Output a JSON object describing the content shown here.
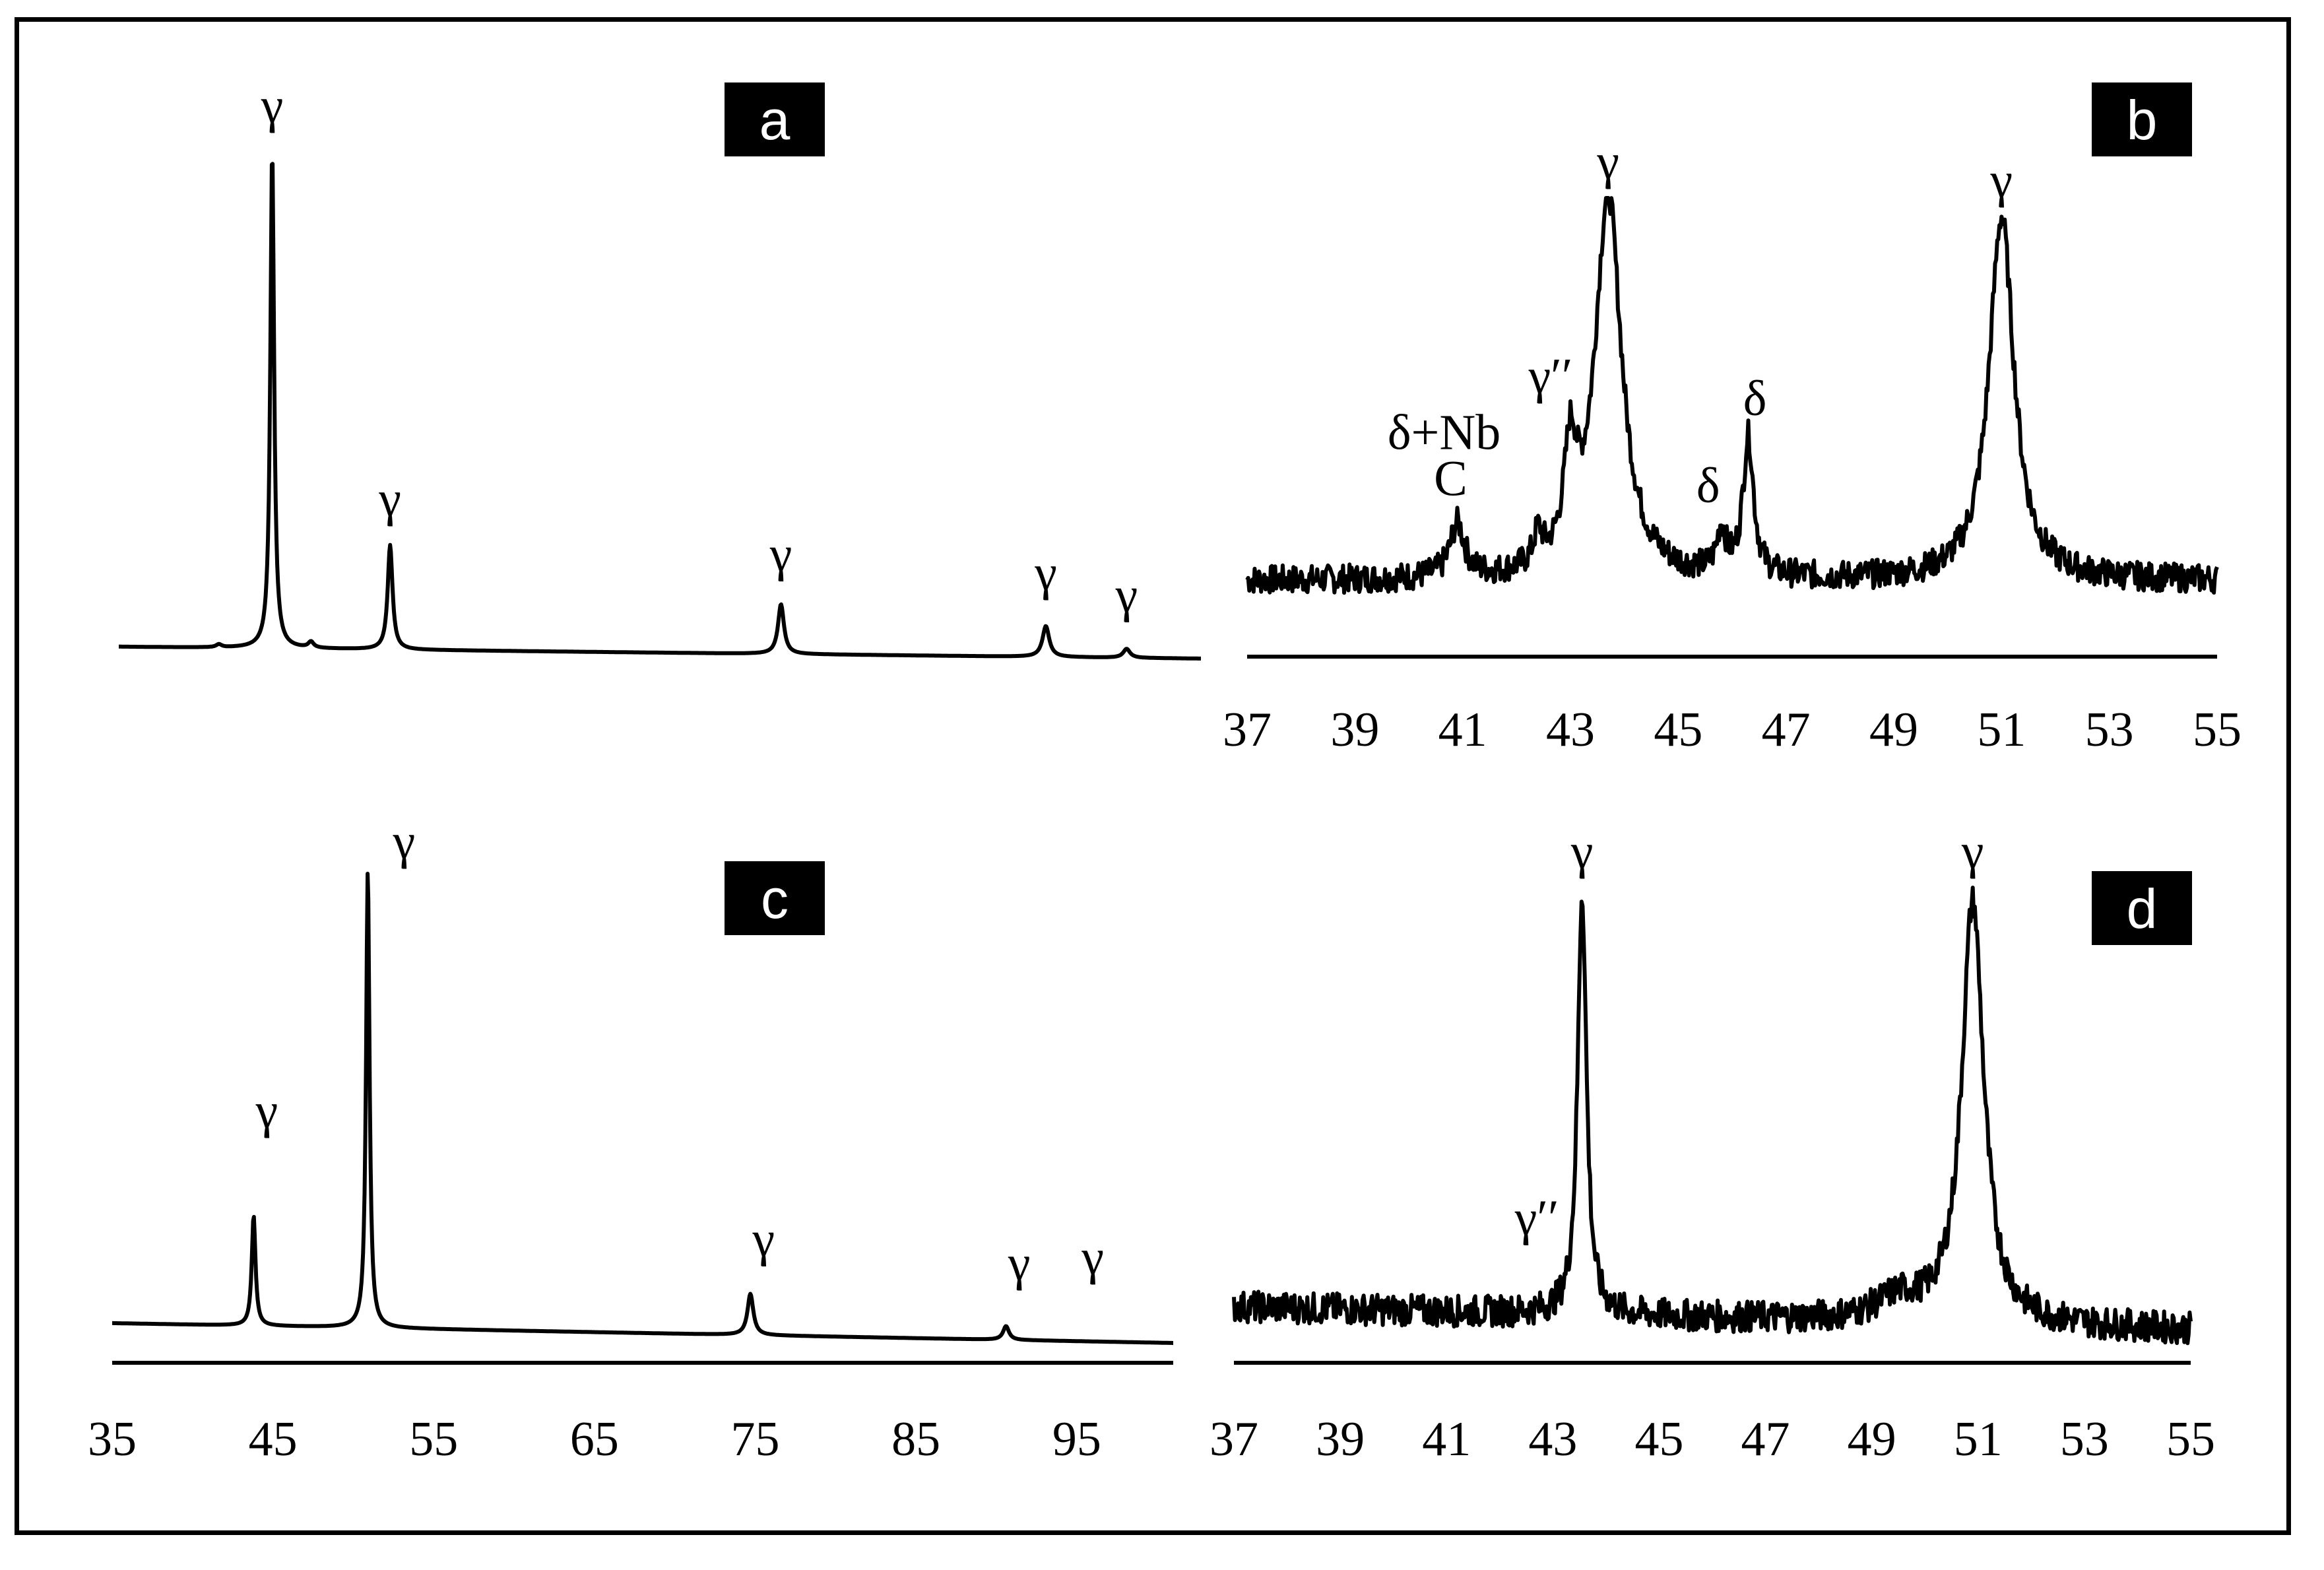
{
  "chart_data": [
    {
      "id": "a",
      "label": "a",
      "type": "line",
      "xlim": [
        35,
        102
      ],
      "noise": 0,
      "peaks": [
        {
          "x": 44.5,
          "h": 1.0,
          "w": 0.14,
          "label": "γ"
        },
        {
          "x": 51.8,
          "h": 0.21,
          "w": 0.18,
          "label": "γ"
        },
        {
          "x": 76.0,
          "h": 0.1,
          "w": 0.22,
          "label": "γ"
        },
        {
          "x": 92.4,
          "h": 0.062,
          "w": 0.25,
          "label": "γ"
        },
        {
          "x": 97.4,
          "h": 0.018,
          "w": 0.25,
          "label": "γ"
        },
        {
          "x": 41.2,
          "h": 0.006,
          "w": 0.2,
          "label": ""
        },
        {
          "x": 46.9,
          "h": 0.012,
          "w": 0.2,
          "label": ""
        }
      ]
    },
    {
      "id": "b",
      "label": "b",
      "type": "line",
      "xlim": [
        37,
        55
      ],
      "x_ticks": [
        "37",
        "39",
        "41",
        "43",
        "45",
        "47",
        "49",
        "51",
        "53",
        "55"
      ],
      "noise": 1,
      "peaks": [
        {
          "x": 43.7,
          "h": 1.0,
          "w": 0.3,
          "label": "γ"
        },
        {
          "x": 51.0,
          "h": 0.95,
          "w": 0.28,
          "label": "γ"
        },
        {
          "x": 43.0,
          "h": 0.28,
          "w": 0.14,
          "label": "γ′′"
        },
        {
          "x": 42.4,
          "h": 0.08,
          "w": 0.1,
          "label": ""
        },
        {
          "x": 40.9,
          "h": 0.14,
          "w": 0.16,
          "label": "δ+Nb C"
        },
        {
          "x": 45.8,
          "h": 0.11,
          "w": 0.1,
          "label": "δ"
        },
        {
          "x": 46.3,
          "h": 0.36,
          "w": 0.12,
          "label": "δ"
        }
      ]
    },
    {
      "id": "c",
      "label": "c",
      "type": "line",
      "xlim": [
        35,
        101
      ],
      "x_ticks": [
        "35",
        "45",
        "55",
        "65",
        "75",
        "85",
        "95"
      ],
      "noise": 0,
      "peaks": [
        {
          "x": 43.8,
          "h": 0.24,
          "w": 0.14,
          "label": "γ"
        },
        {
          "x": 50.9,
          "h": 1.0,
          "w": 0.13,
          "label": "γ"
        },
        {
          "x": 74.7,
          "h": 0.09,
          "w": 0.22,
          "label": "γ"
        },
        {
          "x": 90.6,
          "h": 0.03,
          "w": 0.22,
          "label": "γ"
        },
        {
          "x": 96.0,
          "h": 0.0,
          "w": 0.2,
          "label": "γ"
        }
      ]
    },
    {
      "id": "d",
      "label": "d",
      "type": "line",
      "xlim": [
        37,
        55
      ],
      "x_ticks": [
        "37",
        "39",
        "41",
        "43",
        "45",
        "47",
        "49",
        "51",
        "53",
        "55"
      ],
      "noise": 1,
      "peaks": [
        {
          "x": 43.55,
          "h": 1.0,
          "w": 0.1,
          "label": "γ"
        },
        {
          "x": 50.9,
          "h": 1.0,
          "w": 0.25,
          "label": "γ"
        },
        {
          "x": 42.7,
          "h": 0.0,
          "w": 0.1,
          "label": "γ′′"
        },
        {
          "x": 49.5,
          "h": 0.05,
          "w": 0.5,
          "label": ""
        }
      ]
    }
  ]
}
